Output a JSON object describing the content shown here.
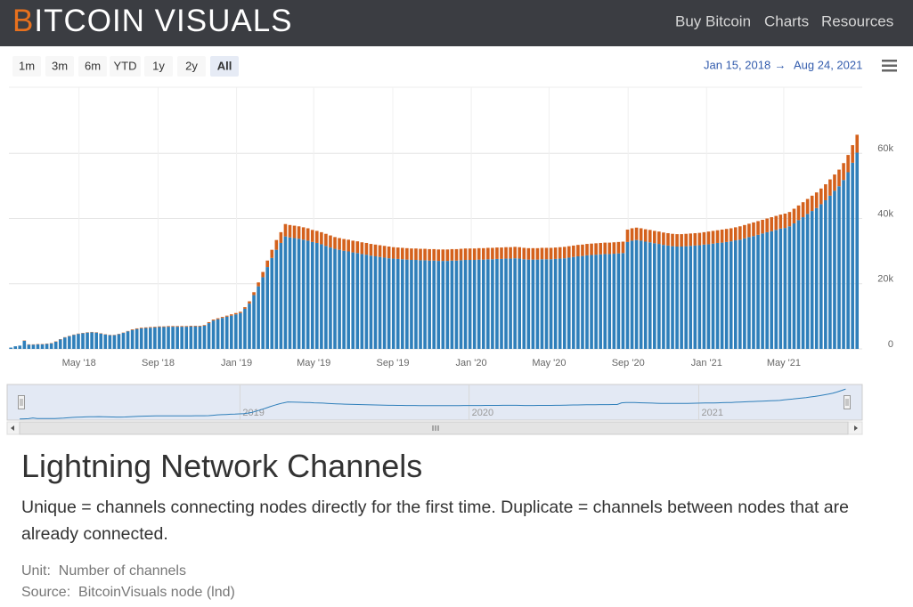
{
  "header": {
    "logo": {
      "accent": "B",
      "rest": "ITCOIN VISUALS"
    },
    "nav": [
      "Buy Bitcoin",
      "Charts",
      "Resources"
    ]
  },
  "range_selector": {
    "buttons": [
      "1m",
      "3m",
      "6m",
      "YTD",
      "1y",
      "2y",
      "All"
    ],
    "selected": 6,
    "from": "Jan 15, 2018",
    "arrow": "→",
    "to": "Aug 24, 2021"
  },
  "chart_data": {
    "type": "bar",
    "stacked": true,
    "grid": true,
    "x": [
      "2018-01-15",
      "2018-01-22",
      "2018-01-29",
      "2018-02-05",
      "2018-02-12",
      "2018-02-19",
      "2018-02-26",
      "2018-03-05",
      "2018-03-12",
      "2018-03-19",
      "2018-03-26",
      "2018-04-02",
      "2018-04-09",
      "2018-04-16",
      "2018-04-23",
      "2018-04-30",
      "2018-05-07",
      "2018-05-14",
      "2018-05-21",
      "2018-05-28",
      "2018-06-04",
      "2018-06-11",
      "2018-06-18",
      "2018-06-25",
      "2018-07-02",
      "2018-07-09",
      "2018-07-16",
      "2018-07-23",
      "2018-07-30",
      "2018-08-06",
      "2018-08-13",
      "2018-08-20",
      "2018-08-27",
      "2018-09-03",
      "2018-09-10",
      "2018-09-17",
      "2018-09-24",
      "2018-10-01",
      "2018-10-08",
      "2018-10-15",
      "2018-10-22",
      "2018-10-29",
      "2018-11-05",
      "2018-11-12",
      "2018-11-19",
      "2018-11-26",
      "2018-12-03",
      "2018-12-10",
      "2018-12-17",
      "2018-12-24",
      "2018-12-31",
      "2019-01-07",
      "2019-01-14",
      "2019-01-21",
      "2019-01-28",
      "2019-02-04",
      "2019-02-11",
      "2019-02-18",
      "2019-02-25",
      "2019-03-04",
      "2019-03-11",
      "2019-03-18",
      "2019-03-25",
      "2019-04-01",
      "2019-04-08",
      "2019-04-15",
      "2019-04-22",
      "2019-04-29",
      "2019-05-06",
      "2019-05-13",
      "2019-05-20",
      "2019-05-27",
      "2019-06-03",
      "2019-06-10",
      "2019-06-17",
      "2019-06-24",
      "2019-07-01",
      "2019-07-08",
      "2019-07-15",
      "2019-07-22",
      "2019-07-29",
      "2019-08-05",
      "2019-08-12",
      "2019-08-19",
      "2019-08-26",
      "2019-09-02",
      "2019-09-09",
      "2019-09-16",
      "2019-09-23",
      "2019-09-30",
      "2019-10-07",
      "2019-10-14",
      "2019-10-21",
      "2019-10-28",
      "2019-11-04",
      "2019-11-11",
      "2019-11-18",
      "2019-11-25",
      "2019-12-02",
      "2019-12-09",
      "2019-12-16",
      "2019-12-23",
      "2019-12-30",
      "2020-01-06",
      "2020-01-13",
      "2020-01-20",
      "2020-01-27",
      "2020-02-03",
      "2020-02-10",
      "2020-02-17",
      "2020-02-24",
      "2020-03-02",
      "2020-03-09",
      "2020-03-16",
      "2020-03-23",
      "2020-03-30",
      "2020-04-06",
      "2020-04-13",
      "2020-04-20",
      "2020-04-27",
      "2020-05-04",
      "2020-05-11",
      "2020-05-18",
      "2020-05-25",
      "2020-06-01",
      "2020-06-08",
      "2020-06-15",
      "2020-06-22",
      "2020-06-29",
      "2020-07-06",
      "2020-07-13",
      "2020-07-20",
      "2020-07-27",
      "2020-08-03",
      "2020-08-10",
      "2020-08-17",
      "2020-08-24",
      "2020-08-31",
      "2020-09-07",
      "2020-09-14",
      "2020-09-21",
      "2020-09-28",
      "2020-10-05",
      "2020-10-12",
      "2020-10-19",
      "2020-10-26",
      "2020-11-02",
      "2020-11-09",
      "2020-11-16",
      "2020-11-23",
      "2020-11-30",
      "2020-12-07",
      "2020-12-14",
      "2020-12-21",
      "2020-12-28",
      "2021-01-04",
      "2021-01-11",
      "2021-01-18",
      "2021-01-25",
      "2021-02-01",
      "2021-02-08",
      "2021-02-15",
      "2021-02-22",
      "2021-03-01",
      "2021-03-08",
      "2021-03-15",
      "2021-03-22",
      "2021-03-29",
      "2021-04-05",
      "2021-04-12",
      "2021-04-19",
      "2021-04-26",
      "2021-05-03",
      "2021-05-10",
      "2021-05-17",
      "2021-05-24",
      "2021-05-31",
      "2021-06-07",
      "2021-06-14",
      "2021-06-21",
      "2021-06-28",
      "2021-07-05",
      "2021-07-12",
      "2021-07-19",
      "2021-07-26",
      "2021-08-02",
      "2021-08-09",
      "2021-08-16",
      "2021-08-23"
    ],
    "series": [
      {
        "color": "#2f7fba",
        "values": [
          400,
          800,
          1000,
          2500,
          1300,
          1300,
          1400,
          1400,
          1500,
          1700,
          2200,
          2900,
          3500,
          3900,
          4300,
          4600,
          4800,
          5000,
          5100,
          5000,
          4700,
          4400,
          4200,
          4200,
          4500,
          4900,
          5400,
          5800,
          6100,
          6300,
          6400,
          6500,
          6600,
          6700,
          6700,
          6800,
          6800,
          6800,
          6800,
          6800,
          6900,
          6900,
          6900,
          7100,
          7900,
          8700,
          9100,
          9500,
          9900,
          10200,
          10600,
          11000,
          12300,
          13900,
          16500,
          19200,
          22000,
          25100,
          27900,
          30400,
          32500,
          34500,
          34200,
          34000,
          33800,
          33500,
          33200,
          32800,
          32500,
          32100,
          31600,
          31100,
          30700,
          30400,
          30100,
          29900,
          29600,
          29400,
          29100,
          28900,
          28600,
          28400,
          28200,
          28000,
          27800,
          27700,
          27600,
          27500,
          27400,
          27300,
          27300,
          27200,
          27200,
          27100,
          27100,
          27000,
          27000,
          27000,
          27100,
          27100,
          27200,
          27300,
          27300,
          27300,
          27400,
          27400,
          27500,
          27500,
          27600,
          27600,
          27700,
          27700,
          27800,
          27700,
          27500,
          27400,
          27400,
          27400,
          27500,
          27500,
          27500,
          27600,
          27700,
          27800,
          28000,
          28200,
          28400,
          28500,
          28700,
          28800,
          28900,
          29000,
          29100,
          29100,
          29200,
          29300,
          29400,
          32800,
          33200,
          33400,
          33200,
          32900,
          32700,
          32400,
          32200,
          31900,
          31700,
          31500,
          31400,
          31400,
          31500,
          31600,
          31700,
          31800,
          32000,
          32100,
          32300,
          32500,
          32600,
          32800,
          33000,
          33300,
          33500,
          33900,
          34300,
          34600,
          35000,
          35400,
          35800,
          36100,
          36500,
          36900,
          37100,
          37600,
          38500,
          39500,
          40400,
          41400,
          42300,
          43200,
          44400,
          45600,
          47000,
          48500,
          49900,
          51800,
          54200,
          57100,
          60200
        ]
      },
      {
        "color": "#d4611c",
        "values": [
          0,
          0,
          0,
          100,
          100,
          100,
          100,
          100,
          100,
          100,
          100,
          100,
          100,
          100,
          100,
          100,
          100,
          100,
          100,
          100,
          100,
          100,
          100,
          100,
          100,
          100,
          100,
          200,
          200,
          200,
          200,
          200,
          200,
          200,
          200,
          200,
          200,
          200,
          200,
          200,
          200,
          200,
          200,
          200,
          300,
          300,
          300,
          300,
          300,
          400,
          400,
          400,
          500,
          700,
          900,
          1200,
          1600,
          2000,
          2500,
          3000,
          3300,
          3800,
          3800,
          3800,
          3800,
          3800,
          3800,
          3700,
          3700,
          3700,
          3700,
          3700,
          3600,
          3600,
          3600,
          3600,
          3600,
          3600,
          3600,
          3600,
          3600,
          3600,
          3600,
          3600,
          3600,
          3500,
          3500,
          3500,
          3500,
          3500,
          3500,
          3500,
          3500,
          3500,
          3500,
          3500,
          3500,
          3500,
          3500,
          3500,
          3500,
          3500,
          3500,
          3500,
          3500,
          3500,
          3500,
          3500,
          3500,
          3500,
          3500,
          3500,
          3500,
          3500,
          3500,
          3500,
          3500,
          3500,
          3500,
          3500,
          3500,
          3500,
          3500,
          3500,
          3500,
          3500,
          3500,
          3500,
          3500,
          3500,
          3500,
          3500,
          3500,
          3500,
          3500,
          3500,
          3500,
          3800,
          3800,
          3800,
          3800,
          3800,
          3800,
          3800,
          3800,
          3800,
          3800,
          3800,
          3800,
          3800,
          3800,
          3800,
          3800,
          3800,
          3800,
          3900,
          3900,
          3900,
          4000,
          4000,
          4000,
          4000,
          4100,
          4100,
          4100,
          4200,
          4200,
          4200,
          4200,
          4300,
          4300,
          4300,
          4400,
          4400,
          4500,
          4500,
          4600,
          4600,
          4700,
          4800,
          4800,
          4900,
          5000,
          5000,
          5100,
          5200,
          5300,
          5400,
          5500
        ]
      }
    ],
    "xlim": [
      "2018-01-12",
      "2021-08-31"
    ],
    "xticks": [
      {
        "value": "2018-05-01",
        "label": "May '18"
      },
      {
        "value": "2018-09-01",
        "label": "Sep '18"
      },
      {
        "value": "2019-01-01",
        "label": "Jan '19"
      },
      {
        "value": "2019-05-01",
        "label": "May '19"
      },
      {
        "value": "2019-09-01",
        "label": "Sep '19"
      },
      {
        "value": "2020-01-01",
        "label": "Jan '20"
      },
      {
        "value": "2020-05-01",
        "label": "May '20"
      },
      {
        "value": "2020-09-01",
        "label": "Sep '20"
      },
      {
        "value": "2021-01-01",
        "label": "Jan '21"
      },
      {
        "value": "2021-05-01",
        "label": "May '21"
      }
    ],
    "ylim": [
      0,
      80000
    ],
    "yticks": [
      0,
      {
        "value": 20000,
        "label": "20k"
      },
      {
        "value": 40000,
        "label": "40k"
      },
      {
        "value": 60000,
        "label": "60k"
      }
    ]
  },
  "navigator": {
    "xticks": [
      {
        "value": "2019-01-01",
        "label": "2019"
      },
      {
        "value": "2020-01-01",
        "label": "2020"
      },
      {
        "value": "2021-01-01",
        "label": "2021"
      }
    ]
  },
  "title": "Lightning Network Channels",
  "description": "Unique = channels connecting nodes directly for the first time. Duplicate = channels between nodes that are already connected.",
  "unit": {
    "label": "Unit:",
    "value": "Number of channels"
  },
  "source": {
    "label": "Source:",
    "value": "BitcoinVisuals node (lnd)"
  }
}
